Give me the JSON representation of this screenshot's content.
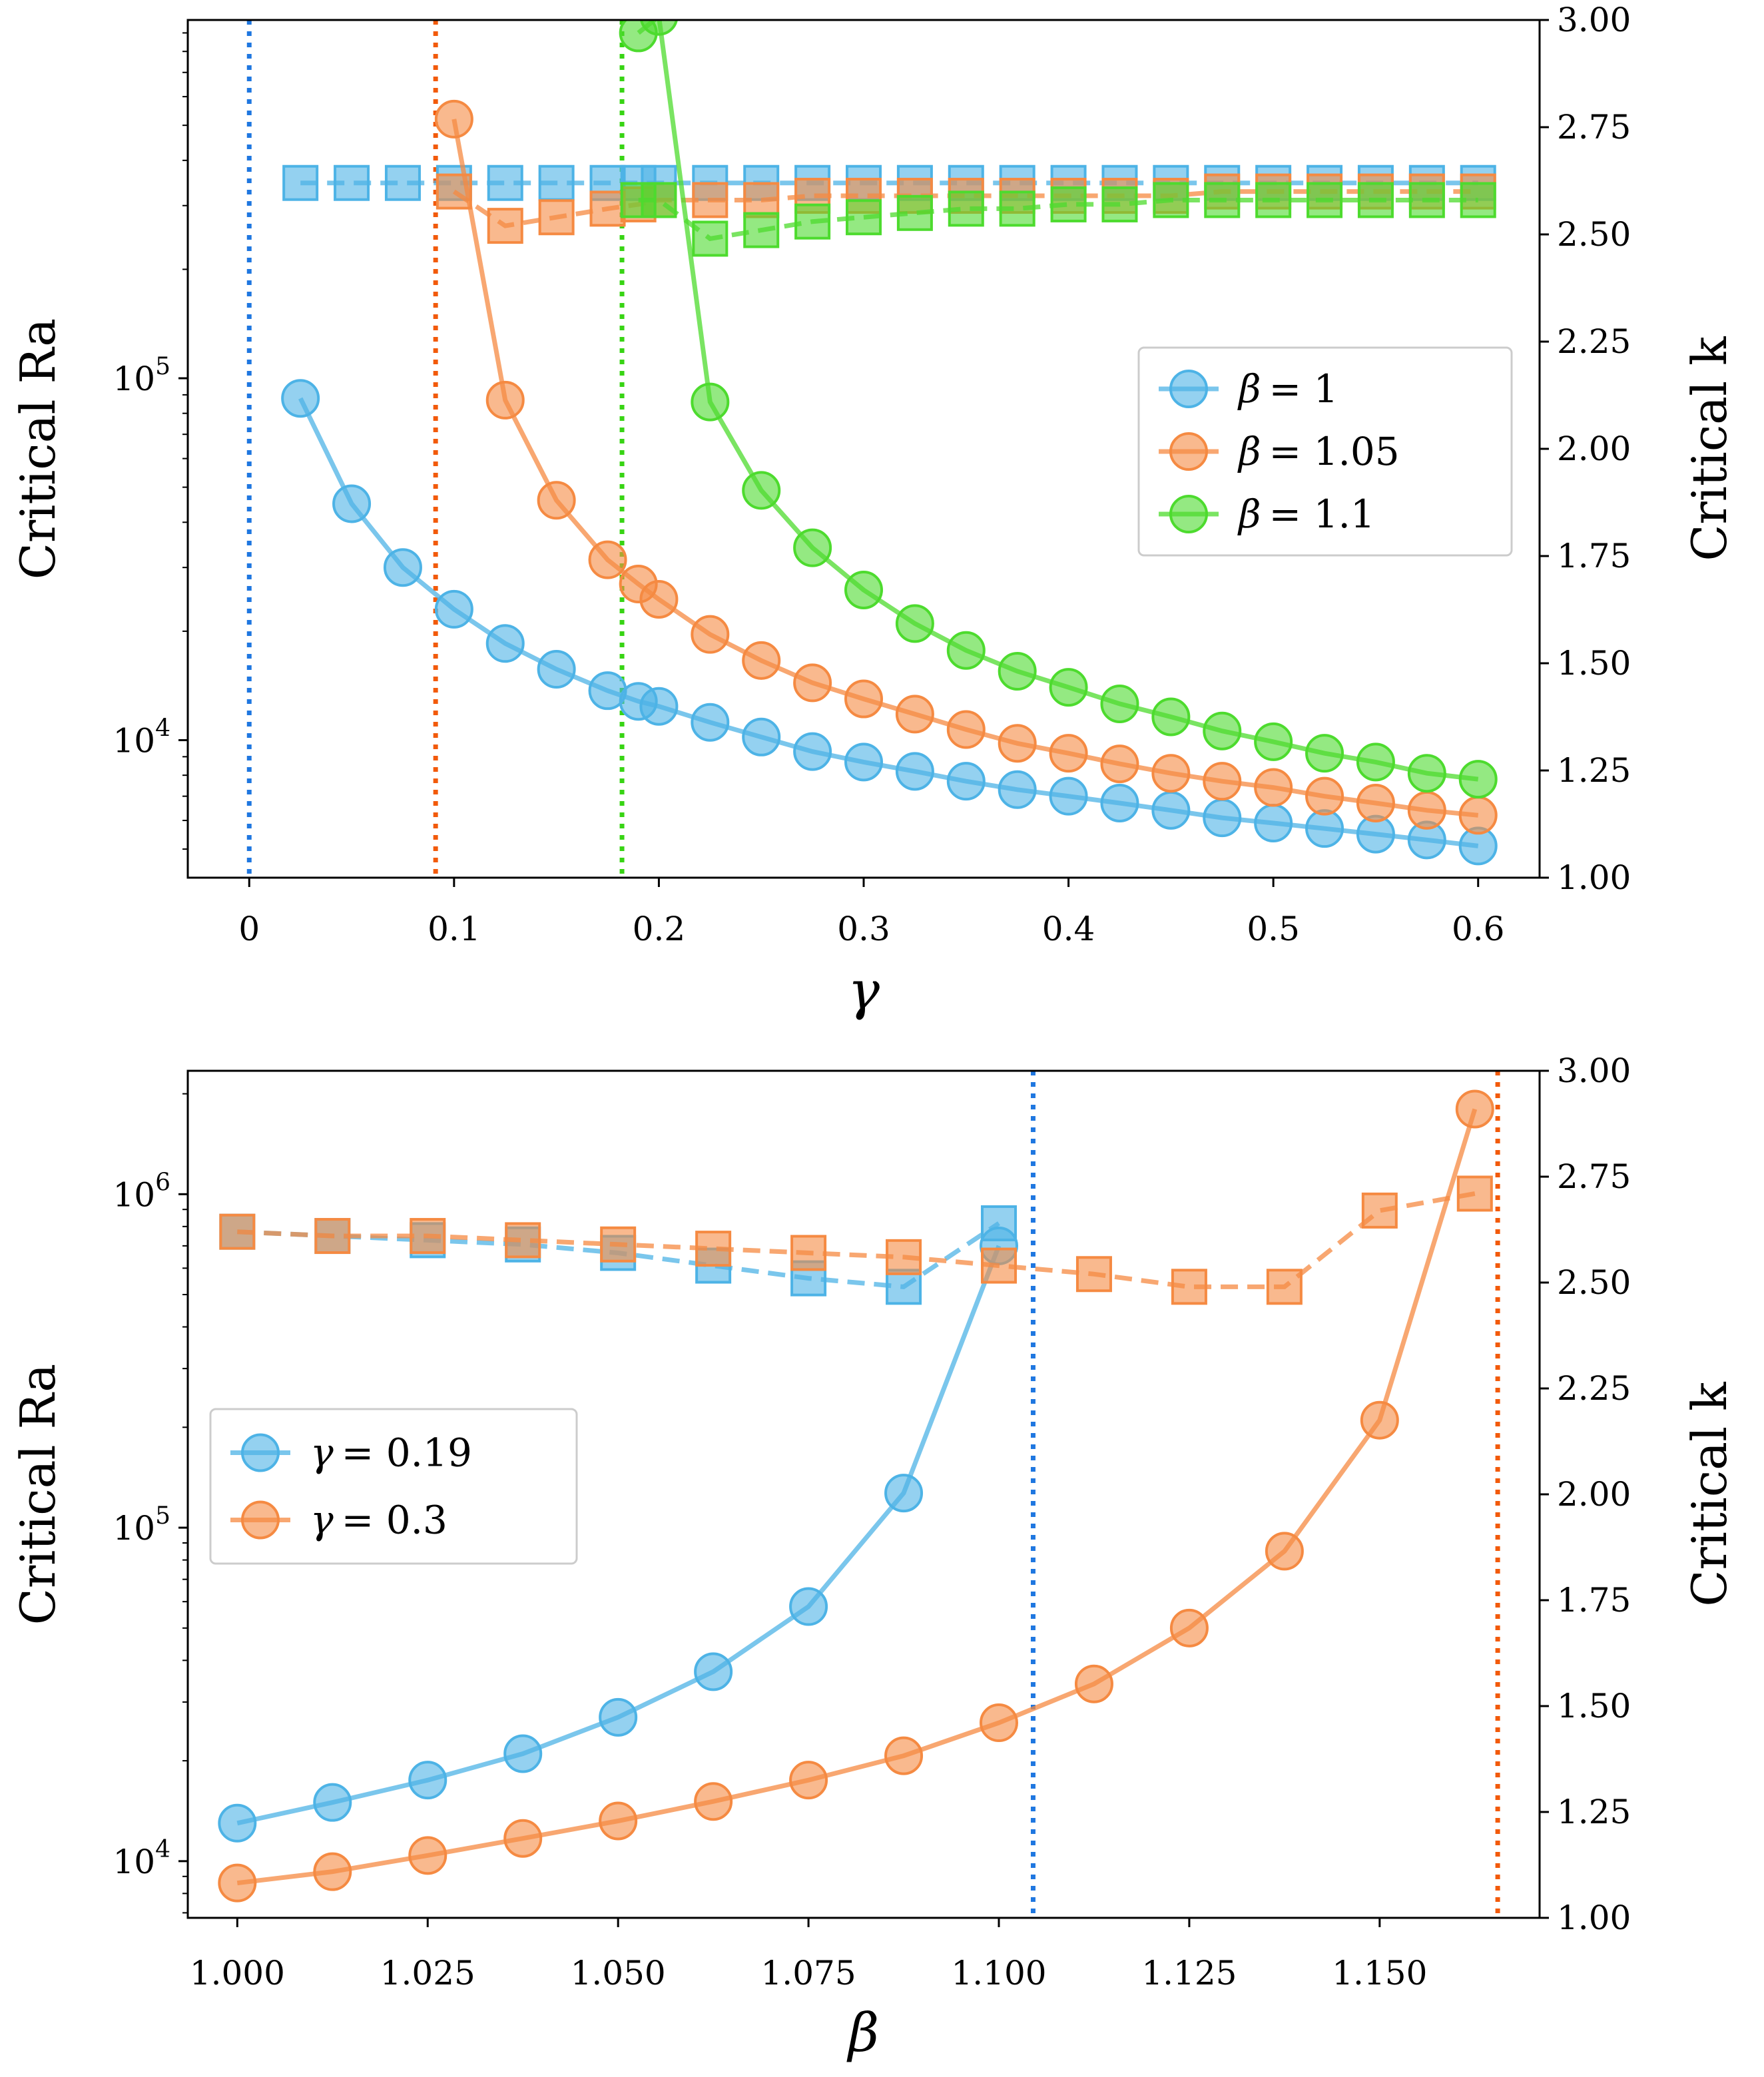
{
  "colors": {
    "blue": "#4db3e6",
    "orange": "#f58a42",
    "green": "#4ddb2e",
    "vline_blue": "#1f77e0",
    "vline_orange": "#f25a0a",
    "vline_green": "#38d414"
  },
  "chart_data": [
    {
      "type": "line",
      "panel": "top",
      "xlabel": "γ",
      "ylabel_left": "Critical Ra",
      "ylabel_right": "Critical k",
      "xlim": [
        -0.03,
        0.63
      ],
      "ylim_left_log10": [
        3.62,
        5.99
      ],
      "ylim_right": [
        1.0,
        3.0
      ],
      "xticks": [
        0,
        0.1,
        0.2,
        0.3,
        0.4,
        0.5,
        0.6
      ],
      "xtick_labels": [
        "0",
        "0.1",
        "0.2",
        "0.3",
        "0.4",
        "0.5",
        "0.6"
      ],
      "yticks_left": [
        {
          "base": "10",
          "exp": "4",
          "value": 10000
        },
        {
          "base": "10",
          "exp": "5",
          "value": 100000
        }
      ],
      "yticks_right": [
        1.0,
        1.25,
        1.5,
        1.75,
        2.0,
        2.25,
        2.5,
        2.75,
        3.0
      ],
      "ytick_right_labels": [
        "1.00",
        "1.25",
        "1.50",
        "1.75",
        "2.00",
        "2.25",
        "2.50",
        "2.75",
        "3.00"
      ],
      "vlines": [
        {
          "x": 0.0,
          "color": "vline_blue"
        },
        {
          "x": 0.091,
          "color": "vline_orange"
        },
        {
          "x": 0.182,
          "color": "vline_green"
        }
      ],
      "legend": {
        "loc": "center-right"
      },
      "series": [
        {
          "name": "β = 1",
          "legend_sym": "β",
          "legend_val": "= 1",
          "color": "blue",
          "x": [
            0.025,
            0.05,
            0.075,
            0.1,
            0.125,
            0.15,
            0.175,
            0.19,
            0.2,
            0.225,
            0.25,
            0.275,
            0.3,
            0.325,
            0.35,
            0.375,
            0.4,
            0.425,
            0.45,
            0.475,
            0.5,
            0.525,
            0.55,
            0.575,
            0.6
          ],
          "ra": [
            88000,
            45000,
            30000,
            23000,
            18500,
            15700,
            13700,
            12800,
            12400,
            11200,
            10200,
            9300,
            8700,
            8200,
            7700,
            7300,
            7000,
            6700,
            6400,
            6100,
            5900,
            5700,
            5500,
            5300,
            5100
          ],
          "k": [
            2.62,
            2.62,
            2.62,
            2.62,
            2.62,
            2.62,
            2.62,
            2.62,
            2.62,
            2.62,
            2.62,
            2.62,
            2.62,
            2.62,
            2.62,
            2.62,
            2.62,
            2.62,
            2.62,
            2.62,
            2.62,
            2.62,
            2.62,
            2.62,
            2.62
          ]
        },
        {
          "name": "β = 1.05",
          "legend_sym": "β",
          "legend_val": "= 1.05",
          "color": "orange",
          "x": [
            0.1,
            0.125,
            0.15,
            0.175,
            0.19,
            0.2,
            0.225,
            0.25,
            0.275,
            0.3,
            0.325,
            0.35,
            0.375,
            0.4,
            0.425,
            0.45,
            0.475,
            0.5,
            0.525,
            0.55,
            0.575,
            0.6
          ],
          "ra": [
            520000,
            87000,
            46000,
            31500,
            27000,
            24500,
            19600,
            16600,
            14400,
            13000,
            11800,
            10700,
            9800,
            9200,
            8600,
            8100,
            7700,
            7400,
            7000,
            6700,
            6400,
            6200
          ],
          "k": [
            2.6,
            2.52,
            2.54,
            2.56,
            2.57,
            2.58,
            2.58,
            2.58,
            2.59,
            2.59,
            2.59,
            2.59,
            2.59,
            2.59,
            2.59,
            2.59,
            2.6,
            2.6,
            2.6,
            2.6,
            2.6,
            2.6
          ]
        },
        {
          "name": "β = 1.1",
          "legend_sym": "β",
          "legend_val": "= 1.1",
          "color": "green",
          "x": [
            0.19,
            0.2,
            0.225,
            0.25,
            0.275,
            0.3,
            0.325,
            0.35,
            0.375,
            0.4,
            0.425,
            0.45,
            0.475,
            0.5,
            0.525,
            0.55,
            0.575,
            0.6
          ],
          "ra": [
            900000,
            1000000,
            86000,
            49000,
            34000,
            26000,
            21000,
            17700,
            15500,
            14000,
            12600,
            11600,
            10600,
            9900,
            9200,
            8700,
            8100,
            7800
          ],
          "k": [
            2.58,
            2.58,
            2.49,
            2.51,
            2.53,
            2.54,
            2.55,
            2.56,
            2.56,
            2.57,
            2.57,
            2.58,
            2.58,
            2.58,
            2.58,
            2.58,
            2.58,
            2.58
          ]
        }
      ]
    },
    {
      "type": "line",
      "panel": "bottom",
      "xlabel": "β",
      "ylabel_left": "Critical Ra",
      "ylabel_right": "Critical k",
      "xlim": [
        0.9935,
        1.171
      ],
      "ylim_left_log10": [
        3.83,
        6.37
      ],
      "ylim_right": [
        1.0,
        3.0
      ],
      "xticks": [
        1.0,
        1.025,
        1.05,
        1.075,
        1.1,
        1.125,
        1.15
      ],
      "xtick_labels": [
        "1.000",
        "1.025",
        "1.050",
        "1.075",
        "1.100",
        "1.125",
        "1.150"
      ],
      "yticks_left": [
        {
          "base": "10",
          "exp": "4",
          "value": 10000
        },
        {
          "base": "10",
          "exp": "5",
          "value": 100000
        },
        {
          "base": "10",
          "exp": "6",
          "value": 1000000
        }
      ],
      "yticks_right": [
        1.0,
        1.25,
        1.5,
        1.75,
        2.0,
        2.25,
        2.5,
        2.75,
        3.0
      ],
      "ytick_right_labels": [
        "1.00",
        "1.25",
        "1.50",
        "1.75",
        "2.00",
        "2.25",
        "2.50",
        "2.75",
        "3.00"
      ],
      "vlines": [
        {
          "x": 1.1045,
          "color": "vline_blue"
        },
        {
          "x": 1.1655,
          "color": "vline_orange"
        }
      ],
      "legend": {
        "loc": "center-left"
      },
      "series": [
        {
          "name": "γ = 0.19",
          "legend_sym": "γ",
          "legend_val": "= 0.19",
          "color": "blue",
          "x": [
            1.0,
            1.0125,
            1.025,
            1.0375,
            1.05,
            1.0625,
            1.075,
            1.0875,
            1.1
          ],
          "ra": [
            13000,
            15000,
            17500,
            21000,
            27000,
            37000,
            58000,
            127000,
            700000
          ],
          "k": [
            2.62,
            2.61,
            2.6,
            2.59,
            2.57,
            2.54,
            2.51,
            2.49,
            2.64
          ]
        },
        {
          "name": "γ = 0.3",
          "legend_sym": "γ",
          "legend_val": "= 0.3",
          "color": "orange",
          "x": [
            1.0,
            1.0125,
            1.025,
            1.0375,
            1.05,
            1.0625,
            1.075,
            1.0875,
            1.1,
            1.1125,
            1.125,
            1.1375,
            1.15,
            1.1625
          ],
          "ra": [
            8600,
            9300,
            10400,
            11700,
            13200,
            15100,
            17500,
            20700,
            26000,
            34000,
            50000,
            85000,
            210000,
            1800000
          ],
          "k": [
            2.62,
            2.61,
            2.61,
            2.6,
            2.59,
            2.58,
            2.57,
            2.56,
            2.54,
            2.52,
            2.49,
            2.49,
            2.67,
            2.71
          ]
        }
      ]
    }
  ]
}
